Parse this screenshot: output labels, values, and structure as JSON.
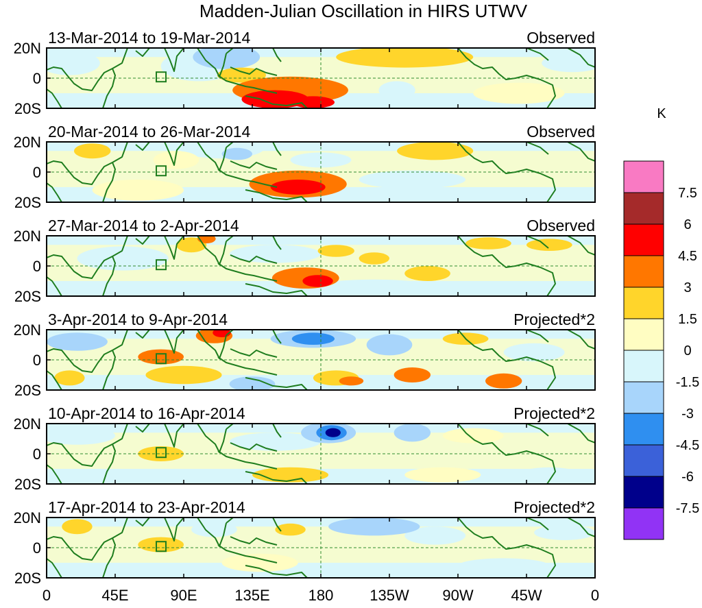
{
  "chart_data": {
    "type": "heatmap",
    "title": "Madden-Julian Oscillation in HIRS UTWV",
    "x_ticks": [
      "0",
      "45E",
      "90E",
      "135E",
      "180",
      "135W",
      "90W",
      "45W",
      "0"
    ],
    "x_range": [
      0,
      360
    ],
    "y_ticks": [
      "20N",
      "0",
      "20S"
    ],
    "y_range": [
      -20,
      20
    ],
    "colorbar": {
      "unit": "K",
      "labels": [
        "7.5",
        "6",
        "4.5",
        "3",
        "1.5",
        "0",
        "-1.5",
        "-3",
        "-4.5",
        "-6",
        "-7.5"
      ],
      "colors": [
        "#f97ac3",
        "#a52a2a",
        "#ff0000",
        "#ff7700",
        "#ffd52b",
        "#fffdc2",
        "#d8f6fb",
        "#a8d5fb",
        "#2f8ff0",
        "#3b61d9",
        "#00008b",
        "#9133f5"
      ]
    },
    "panels": [
      {
        "period": "13-Mar-2014 to 19-Mar-2014",
        "type": "Observed",
        "blobs": [
          {
            "lon": 160,
            "lat": -8,
            "rx": 38,
            "ry": 9,
            "level": 3
          },
          {
            "lon": 150,
            "lat": -14,
            "rx": 22,
            "ry": 6,
            "level": 4
          },
          {
            "lon": 175,
            "lat": -16,
            "rx": 14,
            "ry": 4,
            "level": 4
          },
          {
            "lon": 118,
            "lat": 14,
            "rx": 22,
            "ry": 8,
            "level": -2
          },
          {
            "lon": 100,
            "lat": 8,
            "rx": 25,
            "ry": 10,
            "level": -1
          },
          {
            "lon": 128,
            "lat": 2,
            "rx": 16,
            "ry": 5,
            "level": 2
          },
          {
            "lon": 230,
            "lat": -8,
            "rx": 12,
            "ry": 6,
            "level": -1
          },
          {
            "lon": 235,
            "lat": 14,
            "rx": 45,
            "ry": 7,
            "level": 2
          },
          {
            "lon": 80,
            "lat": -18,
            "rx": 25,
            "ry": 5,
            "level": -1
          },
          {
            "lon": 310,
            "lat": -10,
            "rx": 30,
            "ry": 7,
            "level": 1
          },
          {
            "lon": 15,
            "lat": 10,
            "rx": 20,
            "ry": 8,
            "level": -1
          },
          {
            "lon": 345,
            "lat": 10,
            "rx": 20,
            "ry": 6,
            "level": -1
          }
        ]
      },
      {
        "period": "20-Mar-2014 to 26-Mar-2014",
        "type": "Observed",
        "blobs": [
          {
            "lon": 165,
            "lat": -8,
            "rx": 32,
            "ry": 9,
            "level": 3
          },
          {
            "lon": 165,
            "lat": -10,
            "rx": 18,
            "ry": 5,
            "level": 4
          },
          {
            "lon": 115,
            "lat": 16,
            "rx": 28,
            "ry": 7,
            "level": -1
          },
          {
            "lon": 125,
            "lat": 12,
            "rx": 10,
            "ry": 4,
            "level": -2
          },
          {
            "lon": 30,
            "lat": 14,
            "rx": 12,
            "ry": 5,
            "level": 2
          },
          {
            "lon": 255,
            "lat": 14,
            "rx": 25,
            "ry": 6,
            "level": 2
          },
          {
            "lon": 180,
            "lat": 8,
            "rx": 20,
            "ry": 5,
            "level": -1
          },
          {
            "lon": 240,
            "lat": -5,
            "rx": 35,
            "ry": 6,
            "level": -1
          },
          {
            "lon": 60,
            "lat": -12,
            "rx": 30,
            "ry": 7,
            "level": 1
          },
          {
            "lon": 85,
            "lat": 8,
            "rx": 15,
            "ry": 6,
            "level": 1
          }
        ]
      },
      {
        "period": "27-Mar-2014 to 2-Apr-2014",
        "type": "Observed",
        "blobs": [
          {
            "lon": 170,
            "lat": -8,
            "rx": 22,
            "ry": 7,
            "level": 3
          },
          {
            "lon": 178,
            "lat": -10,
            "rx": 10,
            "ry": 4,
            "level": 4
          },
          {
            "lon": 95,
            "lat": 14,
            "rx": 10,
            "ry": 5,
            "level": 2
          },
          {
            "lon": 105,
            "lat": 18,
            "rx": 6,
            "ry": 3,
            "level": 3
          },
          {
            "lon": 190,
            "lat": 10,
            "rx": 12,
            "ry": 4,
            "level": 2
          },
          {
            "lon": 215,
            "lat": 5,
            "rx": 10,
            "ry": 4,
            "level": 2
          },
          {
            "lon": 250,
            "lat": -5,
            "rx": 15,
            "ry": 5,
            "level": 2
          },
          {
            "lon": 290,
            "lat": 15,
            "rx": 15,
            "ry": 4,
            "level": 2
          },
          {
            "lon": 330,
            "lat": 14,
            "rx": 15,
            "ry": 4,
            "level": 2
          },
          {
            "lon": 150,
            "lat": 8,
            "rx": 30,
            "ry": 6,
            "level": -1
          },
          {
            "lon": 50,
            "lat": 5,
            "rx": 30,
            "ry": 8,
            "level": -1
          },
          {
            "lon": 215,
            "lat": -14,
            "rx": 40,
            "ry": 5,
            "level": -1
          }
        ]
      },
      {
        "period": "3-Apr-2014 to 9-Apr-2014",
        "type": "Projected*2",
        "blobs": [
          {
            "lon": 175,
            "lat": 14,
            "rx": 28,
            "ry": 6,
            "level": -2
          },
          {
            "lon": 175,
            "lat": 14,
            "rx": 14,
            "ry": 4,
            "level": -3
          },
          {
            "lon": 110,
            "lat": 16,
            "rx": 12,
            "ry": 5,
            "level": 3
          },
          {
            "lon": 115,
            "lat": 18,
            "rx": 6,
            "ry": 3,
            "level": 4
          },
          {
            "lon": 75,
            "lat": 2,
            "rx": 15,
            "ry": 5,
            "level": 3
          },
          {
            "lon": 90,
            "lat": -10,
            "rx": 25,
            "ry": 6,
            "level": 2
          },
          {
            "lon": 190,
            "lat": -12,
            "rx": 15,
            "ry": 5,
            "level": 2
          },
          {
            "lon": 200,
            "lat": -14,
            "rx": 8,
            "ry": 3,
            "level": 3
          },
          {
            "lon": 240,
            "lat": -10,
            "rx": 12,
            "ry": 5,
            "level": 3
          },
          {
            "lon": 300,
            "lat": -14,
            "rx": 12,
            "ry": 5,
            "level": 3
          },
          {
            "lon": 275,
            "lat": 14,
            "rx": 15,
            "ry": 4,
            "level": 2
          },
          {
            "lon": 20,
            "lat": 12,
            "rx": 20,
            "ry": 6,
            "level": -2
          },
          {
            "lon": 135,
            "lat": -16,
            "rx": 15,
            "ry": 5,
            "level": -2
          },
          {
            "lon": 225,
            "lat": 10,
            "rx": 15,
            "ry": 7,
            "level": -2
          },
          {
            "lon": 320,
            "lat": 5,
            "rx": 20,
            "ry": 6,
            "level": -1
          },
          {
            "lon": 15,
            "lat": -12,
            "rx": 10,
            "ry": 5,
            "level": 2
          }
        ]
      },
      {
        "period": "10-Apr-2014 to 16-Apr-2014",
        "type": "Projected*2",
        "blobs": [
          {
            "lon": 185,
            "lat": 14,
            "rx": 18,
            "ry": 7,
            "level": -2
          },
          {
            "lon": 187,
            "lat": 14,
            "rx": 10,
            "ry": 5,
            "level": -3
          },
          {
            "lon": 188,
            "lat": 14,
            "rx": 5,
            "ry": 3,
            "level": -5
          },
          {
            "lon": 240,
            "lat": 14,
            "rx": 12,
            "ry": 6,
            "level": -2
          },
          {
            "lon": 150,
            "lat": 8,
            "rx": 30,
            "ry": 6,
            "level": -1
          },
          {
            "lon": 75,
            "lat": 0,
            "rx": 15,
            "ry": 5,
            "level": 2
          },
          {
            "lon": 160,
            "lat": -14,
            "rx": 25,
            "ry": 5,
            "level": 2
          },
          {
            "lon": 260,
            "lat": -14,
            "rx": 25,
            "ry": 5,
            "level": 1
          },
          {
            "lon": 20,
            "lat": 12,
            "rx": 25,
            "ry": 6,
            "level": -1
          },
          {
            "lon": 280,
            "lat": 12,
            "rx": 20,
            "ry": 5,
            "level": 1
          },
          {
            "lon": 330,
            "lat": -14,
            "rx": 20,
            "ry": 5,
            "level": -1
          }
        ]
      },
      {
        "period": "17-Apr-2014 to 23-Apr-2014",
        "type": "Projected*2",
        "blobs": [
          {
            "lon": 215,
            "lat": 14,
            "rx": 30,
            "ry": 6,
            "level": -2
          },
          {
            "lon": 255,
            "lat": 8,
            "rx": 20,
            "ry": 6,
            "level": -1
          },
          {
            "lon": 20,
            "lat": 14,
            "rx": 10,
            "ry": 5,
            "level": 2
          },
          {
            "lon": 75,
            "lat": 2,
            "rx": 15,
            "ry": 5,
            "level": 2
          },
          {
            "lon": 160,
            "lat": 12,
            "rx": 10,
            "ry": 4,
            "level": 2
          },
          {
            "lon": 140,
            "lat": -10,
            "rx": 25,
            "ry": 6,
            "level": 1
          },
          {
            "lon": 300,
            "lat": -12,
            "rx": 30,
            "ry": 5,
            "level": -1
          },
          {
            "lon": 110,
            "lat": 12,
            "rx": 15,
            "ry": 5,
            "level": -1
          },
          {
            "lon": 340,
            "lat": 10,
            "rx": 20,
            "ry": 5,
            "level": -1
          }
        ]
      }
    ]
  }
}
